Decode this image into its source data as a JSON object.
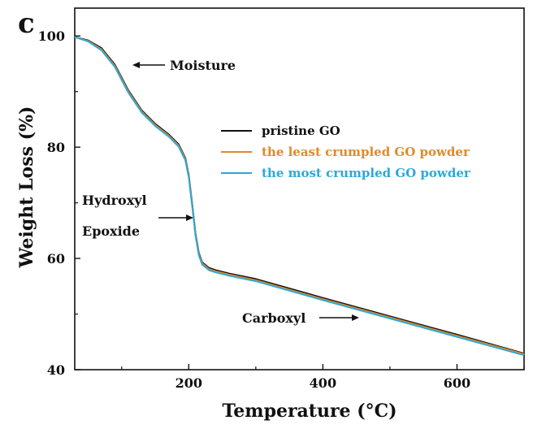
{
  "panel_label": "c",
  "chart_data": {
    "type": "line",
    "xlabel": "Temperature (°C)",
    "ylabel": "Weight Loss (%)",
    "xlim": [
      30,
      700
    ],
    "ylim": [
      40,
      105
    ],
    "xticks": [
      200,
      400,
      600
    ],
    "yticks": [
      40,
      60,
      80,
      100
    ],
    "grid": false,
    "legend_position": "upper-right",
    "series": [
      {
        "name": "pristine GO",
        "color": "#111111",
        "x": [
          30,
          50,
          70,
          90,
          110,
          130,
          150,
          170,
          185,
          195,
          200,
          205,
          210,
          215,
          220,
          230,
          240,
          260,
          300,
          400,
          500,
          600,
          700
        ],
        "y": [
          99.8,
          99.2,
          97.8,
          94.8,
          90.2,
          86.6,
          84.2,
          82.3,
          80.5,
          78.0,
          75.0,
          70.0,
          64.5,
          61.0,
          59.3,
          58.3,
          57.9,
          57.3,
          56.3,
          52.9,
          49.6,
          46.3,
          42.9
        ]
      },
      {
        "name": "the least crumpled GO powder",
        "color": "#e08a2a",
        "x": [
          30,
          50,
          70,
          90,
          110,
          130,
          150,
          170,
          185,
          195,
          200,
          205,
          210,
          215,
          220,
          230,
          240,
          260,
          300,
          400,
          500,
          600,
          700
        ],
        "y": [
          99.8,
          99.1,
          97.6,
          94.6,
          90.0,
          86.4,
          84.0,
          82.1,
          80.3,
          77.8,
          74.8,
          69.8,
          64.3,
          60.8,
          59.1,
          58.1,
          57.7,
          57.1,
          56.1,
          52.7,
          49.4,
          46.1,
          42.8
        ]
      },
      {
        "name": "the most crumpled GO powder",
        "color": "#2fa8d8",
        "x": [
          30,
          50,
          70,
          90,
          110,
          130,
          150,
          170,
          185,
          195,
          200,
          205,
          210,
          215,
          220,
          230,
          240,
          260,
          300,
          400,
          500,
          600,
          700
        ],
        "y": [
          99.8,
          99.0,
          97.4,
          94.4,
          89.8,
          86.2,
          83.8,
          81.9,
          80.1,
          77.6,
          74.6,
          69.6,
          64.1,
          60.6,
          58.9,
          57.9,
          57.5,
          56.9,
          55.9,
          52.5,
          49.2,
          45.9,
          42.6
        ]
      }
    ],
    "annotations": [
      {
        "text": "Moisture",
        "x": 125,
        "y": 94.5
      },
      {
        "text": "Hydroxyl",
        "x": 48,
        "y": 70.5
      },
      {
        "text": "Epoxide",
        "x": 48,
        "y": 65.5
      },
      {
        "text": "Carboxyl",
        "x": 300,
        "y": 49
      }
    ]
  }
}
